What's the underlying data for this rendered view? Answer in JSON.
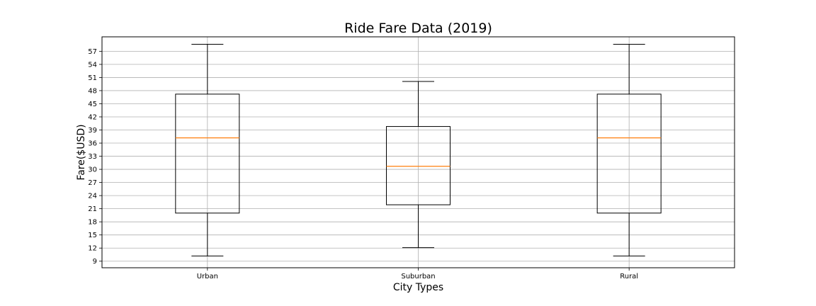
{
  "chart_data": {
    "type": "box",
    "title": "Ride Fare Data (2019)",
    "xlabel": "City Types",
    "ylabel": "Fare($USD)",
    "ylim": [
      7.5,
      60.3
    ],
    "yticks": [
      9,
      12,
      15,
      18,
      21,
      24,
      27,
      30,
      33,
      36,
      39,
      42,
      45,
      48,
      51,
      54,
      57
    ],
    "grid": true,
    "categories": [
      "Urban",
      "Suburban",
      "Rural"
    ],
    "boxes": [
      {
        "name": "Urban",
        "whisker_low": 10.2,
        "q1": 20.0,
        "median": 37.2,
        "q3": 47.2,
        "whisker_high": 58.6
      },
      {
        "name": "Suburban",
        "whisker_low": 12.1,
        "q1": 21.9,
        "median": 30.7,
        "q3": 39.8,
        "whisker_high": 50.1
      },
      {
        "name": "Rural",
        "whisker_low": 10.2,
        "q1": 20.0,
        "median": 37.2,
        "q3": 47.2,
        "whisker_high": 58.6
      }
    ],
    "colors": {
      "median": "#ff7f0e",
      "box": "#000000",
      "grid": "#b0b0b0"
    }
  }
}
